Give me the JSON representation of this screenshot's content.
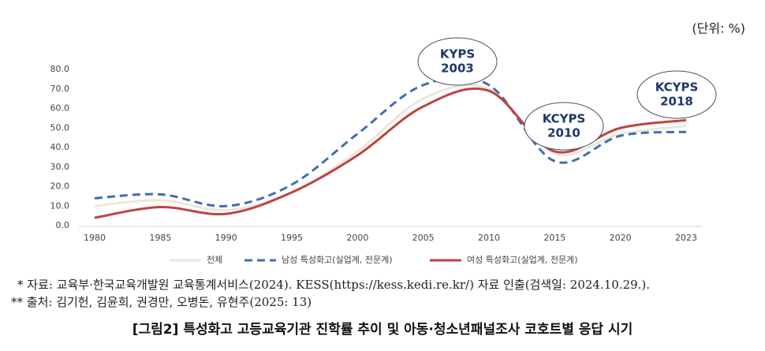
{
  "chart_data": {
    "type": "line",
    "unit_label": "(단위: %)",
    "categories": [
      "1980",
      "1985",
      "1990",
      "1995",
      "2000",
      "2005",
      "2010",
      "2015",
      "2020",
      "2023"
    ],
    "ylim": [
      0,
      80
    ],
    "yticks": [
      {
        "value": 0,
        "label": "0.0"
      },
      {
        "value": 10,
        "label": "10.0"
      },
      {
        "value": 20,
        "label": "20.0"
      },
      {
        "value": 30,
        "label": "30.0"
      },
      {
        "value": 40,
        "label": "40.0"
      },
      {
        "value": 50,
        "label": "50.0"
      },
      {
        "value": 60,
        "label": "60.0"
      },
      {
        "value": 70,
        "label": "70.0"
      },
      {
        "value": 80,
        "label": "80.0"
      }
    ],
    "grid": false,
    "legend": "bottom",
    "series": [
      {
        "name": "전체",
        "color": "#ece7da",
        "style": "solid",
        "values": [
          10,
          13,
          8,
          17,
          38,
          65,
          70,
          37,
          47,
          51
        ]
      },
      {
        "name": "남성 특성화고(실업계, 전문계)",
        "color": "#3f6fb0",
        "style": "dashed",
        "values": [
          14,
          16,
          10,
          21,
          47,
          72,
          72,
          33,
          46,
          48
        ]
      },
      {
        "name": "여성 특성화고(실업계, 전문계)",
        "color": "#c0433f",
        "style": "solid",
        "values": [
          4,
          9.5,
          6,
          17,
          36,
          61,
          69,
          38,
          50,
          54
        ]
      }
    ],
    "annotations": [
      {
        "lines": [
          "KYPS",
          "2003"
        ]
      },
      {
        "lines": [
          "KCYPS",
          "2010"
        ]
      },
      {
        "lines": [
          "KCYPS",
          "2018"
        ]
      }
    ]
  },
  "notes": [
    "* 자료: 교육부·한국교육개발원 교육통계서비스(2024). KESS(https://kess.kedi.re.kr/) 자료 인출(검색일: 2024.10.29.).",
    "** 출처: 김기헌, 김윤희, 권경만, 오병돈, 유현주(2025: 13)"
  ],
  "caption": "[그림2] 특성화고 고등교육기관 진학률 추이 및 아동·청소년패널조사 코호트별 응답 시기"
}
